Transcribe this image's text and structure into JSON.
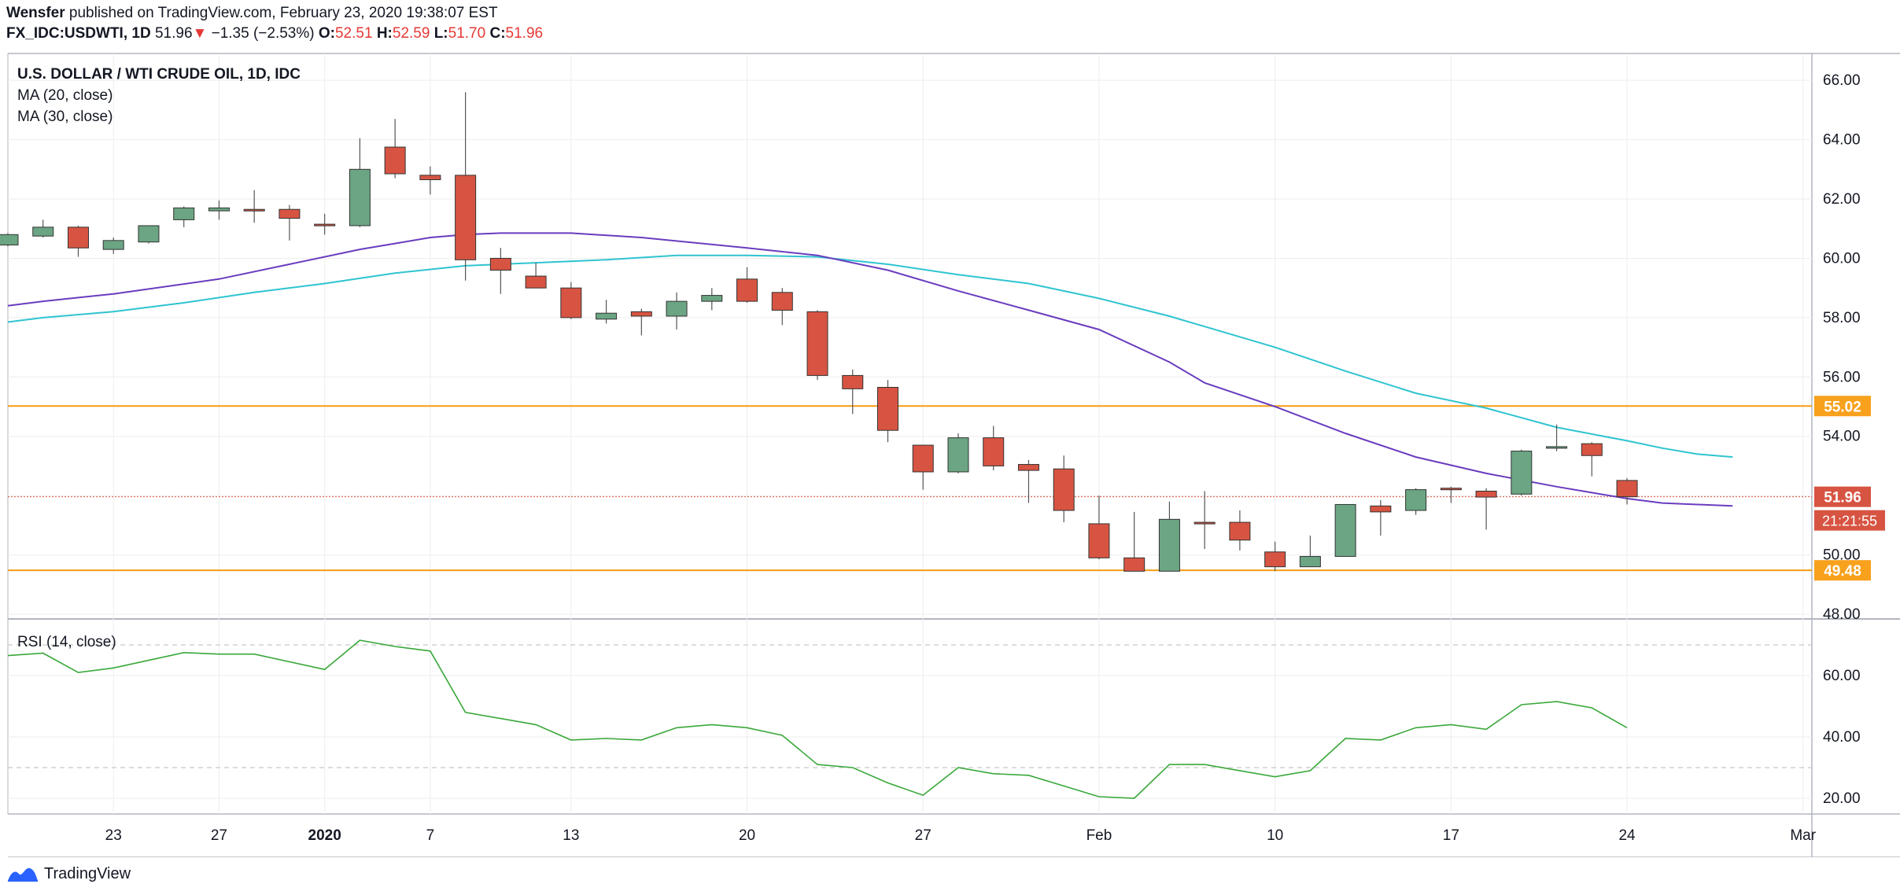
{
  "header": {
    "author": "Wensfer",
    "published_text": "published on TradingView.com, February 23, 2020 19:38:07 EST",
    "symbol": "FX_IDC:USDWTI, 1D",
    "last": "51.96",
    "change_arrow": "▼",
    "change": "−1.35 (−2.53%)",
    "open_label": "O:",
    "open": "52.51",
    "high_label": "H:",
    "high": "52.59",
    "low_label": "L:",
    "low": "51.70",
    "close_label": "C:",
    "close": "51.96"
  },
  "footer": {
    "brand": "TradingView",
    "logo_icon": "tradingview-logo-icon"
  },
  "colors": {
    "up": "#6ba583",
    "down": "#d75442",
    "ma20": "#6a3cbf",
    "ma30": "#2fc4d0",
    "level": "#f59d12",
    "level_label_bg": "#f8a11d",
    "price_label_bg": "#d75442",
    "rsi": "#3aa83a",
    "grid": "#eeeeee"
  },
  "chart_data": [
    {
      "type": "candlestick",
      "title": "U.S. DOLLAR / WTI CRUDE OIL, 1D, IDC",
      "legend": [
        "MA (20, close)",
        "MA (30, close)"
      ],
      "ylim": [
        48,
        66.8
      ],
      "y_ticks": [
        "48.00",
        "50.00",
        "52.00",
        "54.00",
        "56.00",
        "58.00",
        "60.00",
        "62.00",
        "64.00",
        "66.00"
      ],
      "x_ticks": [
        {
          "label": "23",
          "i": 3
        },
        {
          "label": "27",
          "i": 6
        },
        {
          "label": "2020",
          "i": 9
        },
        {
          "label": "7",
          "i": 12
        },
        {
          "label": "13",
          "i": 16
        },
        {
          "label": "20",
          "i": 21
        },
        {
          "label": "27",
          "i": 26
        },
        {
          "label": "Feb",
          "i": 31
        },
        {
          "label": "10",
          "i": 36
        },
        {
          "label": "17",
          "i": 41
        },
        {
          "label": "24",
          "i": 46
        },
        {
          "label": "Mar",
          "i": 51
        }
      ],
      "candles": [
        [
          60.45,
          60.85,
          60.4,
          60.8
        ],
        [
          60.75,
          61.3,
          60.7,
          61.05
        ],
        [
          61.05,
          61.1,
          60.05,
          60.35
        ],
        [
          60.3,
          60.7,
          60.15,
          60.6
        ],
        [
          60.55,
          61.1,
          60.5,
          61.1
        ],
        [
          61.3,
          61.75,
          61.05,
          61.7
        ],
        [
          61.6,
          61.95,
          61.3,
          61.7
        ],
        [
          61.65,
          62.3,
          61.2,
          61.6
        ],
        [
          61.65,
          61.8,
          60.6,
          61.35
        ],
        [
          61.15,
          61.5,
          60.8,
          61.1
        ],
        [
          61.1,
          64.05,
          61.05,
          63.0
        ],
        [
          63.75,
          64.7,
          62.7,
          62.85
        ],
        [
          62.8,
          63.1,
          62.15,
          62.65
        ],
        [
          62.8,
          65.6,
          59.25,
          59.95
        ],
        [
          60.0,
          60.35,
          58.8,
          59.6
        ],
        [
          59.4,
          59.85,
          59.0,
          59.0
        ],
        [
          59.0,
          59.2,
          57.95,
          58.0
        ],
        [
          57.95,
          58.6,
          57.8,
          58.15
        ],
        [
          58.2,
          58.3,
          57.4,
          58.05
        ],
        [
          58.05,
          58.85,
          57.6,
          58.55
        ],
        [
          58.55,
          59.0,
          58.25,
          58.75
        ],
        [
          59.3,
          59.7,
          58.5,
          58.55
        ],
        [
          58.85,
          59.0,
          57.75,
          58.25
        ],
        [
          58.2,
          58.25,
          55.9,
          56.05
        ],
        [
          56.05,
          56.25,
          54.75,
          55.6
        ],
        [
          55.65,
          55.9,
          53.8,
          54.2
        ],
        [
          53.7,
          53.7,
          52.2,
          52.8
        ],
        [
          52.8,
          54.1,
          52.75,
          53.95
        ],
        [
          53.95,
          54.35,
          52.85,
          53.0
        ],
        [
          53.05,
          53.2,
          51.75,
          52.85
        ],
        [
          52.9,
          53.35,
          51.1,
          51.5
        ],
        [
          51.05,
          52.0,
          49.85,
          49.9
        ],
        [
          49.9,
          51.45,
          49.45,
          49.45
        ],
        [
          49.45,
          51.8,
          49.45,
          51.2
        ],
        [
          51.1,
          52.15,
          50.2,
          51.05
        ],
        [
          51.1,
          51.5,
          50.15,
          50.5
        ],
        [
          50.1,
          50.45,
          49.45,
          49.6
        ],
        [
          49.6,
          50.65,
          49.6,
          49.95
        ],
        [
          49.95,
          51.65,
          49.95,
          51.7
        ],
        [
          51.65,
          51.85,
          50.65,
          51.45
        ],
        [
          51.5,
          52.25,
          51.35,
          52.2
        ],
        [
          52.25,
          52.3,
          51.75,
          52.2
        ],
        [
          52.15,
          52.25,
          50.85,
          51.95
        ],
        [
          52.05,
          53.55,
          52.0,
          53.5
        ],
        [
          53.6,
          54.4,
          53.5,
          53.65
        ],
        [
          53.75,
          53.8,
          52.65,
          53.35
        ],
        [
          52.51,
          52.59,
          51.7,
          51.96
        ]
      ],
      "ma20": [
        [
          0,
          58.4
        ],
        [
          1,
          58.55
        ],
        [
          3,
          58.8
        ],
        [
          6,
          59.3
        ],
        [
          8,
          59.8
        ],
        [
          10,
          60.3
        ],
        [
          11,
          60.5
        ],
        [
          12,
          60.7
        ],
        [
          13,
          60.8
        ],
        [
          14,
          60.85
        ],
        [
          16,
          60.85
        ],
        [
          18,
          60.7
        ],
        [
          21,
          60.35
        ],
        [
          23,
          60.1
        ],
        [
          25,
          59.6
        ],
        [
          27,
          58.9
        ],
        [
          29,
          58.25
        ],
        [
          31,
          57.6
        ],
        [
          33,
          56.5
        ],
        [
          34,
          55.8
        ],
        [
          36,
          55.0
        ],
        [
          38,
          54.1
        ],
        [
          40,
          53.3
        ],
        [
          42,
          52.75
        ],
        [
          44,
          52.3
        ],
        [
          45,
          52.1
        ],
        [
          46,
          51.9
        ],
        [
          47,
          51.75
        ],
        [
          48,
          51.7
        ],
        [
          49,
          51.65
        ]
      ],
      "ma30": [
        [
          0,
          57.85
        ],
        [
          1,
          58.0
        ],
        [
          3,
          58.2
        ],
        [
          5,
          58.5
        ],
        [
          7,
          58.85
        ],
        [
          9,
          59.15
        ],
        [
          11,
          59.5
        ],
        [
          13,
          59.75
        ],
        [
          15,
          59.85
        ],
        [
          17,
          59.95
        ],
        [
          19,
          60.1
        ],
        [
          21,
          60.1
        ],
        [
          23,
          60.05
        ],
        [
          25,
          59.8
        ],
        [
          27,
          59.45
        ],
        [
          29,
          59.15
        ],
        [
          31,
          58.65
        ],
        [
          33,
          58.05
        ],
        [
          34,
          57.7
        ],
        [
          36,
          57.0
        ],
        [
          38,
          56.2
        ],
        [
          40,
          55.45
        ],
        [
          42,
          54.95
        ],
        [
          44,
          54.3
        ],
        [
          46,
          53.85
        ],
        [
          47,
          53.6
        ],
        [
          48,
          53.4
        ],
        [
          49,
          53.3
        ]
      ],
      "levels": [
        55.02,
        49.48
      ],
      "current_price": 51.96,
      "price_labels": {
        "level_high": "55.02",
        "current": "51.96",
        "countdown": "21:21:55",
        "level_low": "49.48"
      }
    },
    {
      "type": "line",
      "title": "RSI (14, close)",
      "ylim": [
        15,
        75
      ],
      "y_ticks": [
        "20.00",
        "40.00",
        "60.00"
      ],
      "bands": [
        70,
        30
      ],
      "x": [
        0,
        1,
        2,
        3,
        5,
        6,
        7,
        9,
        10,
        11,
        12,
        13,
        14,
        15,
        16,
        17,
        18,
        19,
        20,
        21,
        22,
        23,
        24,
        25,
        26,
        27,
        28,
        29,
        30,
        31,
        32,
        33,
        34,
        35,
        36,
        37,
        38,
        39,
        40,
        41,
        42,
        43,
        44,
        45,
        46
      ],
      "values": [
        66.5,
        67.3,
        61.0,
        62.5,
        67.5,
        67.0,
        67.0,
        62.0,
        71.5,
        69.5,
        68.0,
        48.0,
        46.0,
        44.0,
        39.0,
        39.5,
        39.0,
        43.0,
        44.0,
        43.0,
        40.5,
        31.0,
        30.0,
        25.0,
        21.0,
        30.0,
        28.0,
        27.5,
        24.0,
        20.5,
        20.0,
        31.0,
        31.0,
        29.0,
        27.0,
        29.0,
        39.5,
        39.0,
        43.0,
        44.0,
        42.5,
        50.5,
        51.5,
        49.5,
        43.0
      ]
    }
  ]
}
